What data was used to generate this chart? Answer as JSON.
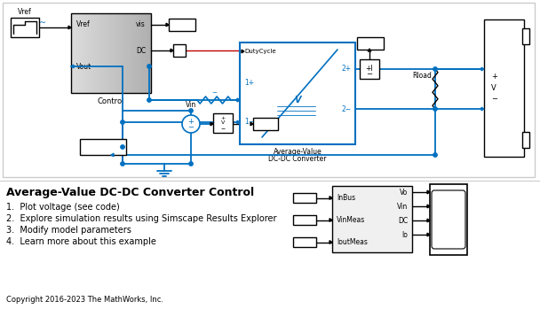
{
  "bg_color": "#ffffff",
  "blue": "#0070c0",
  "black": "#000000",
  "light_gray": "#cccccc",
  "red": "#c00000",
  "title": "Average-Value DC-DC Converter Control",
  "bullet1": "1.  Plot voltage (see code)",
  "bullet2": "2.  Explore simulation results using Simscape Results Explorer",
  "bullet3": "3.  Modify model parameters",
  "bullet4": "4.  Learn more about this example",
  "copyright": "Copyright 2016-2023 The MathWorks, Inc."
}
